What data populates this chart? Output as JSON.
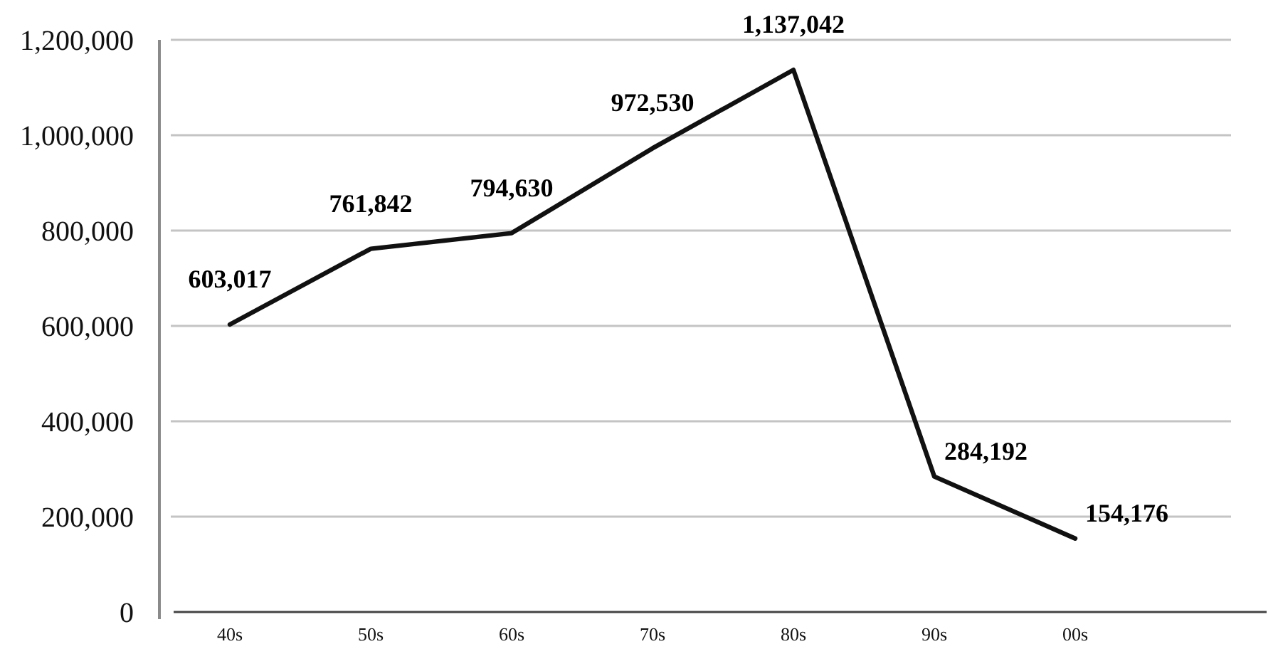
{
  "chart_data": {
    "type": "line",
    "categories": [
      "40s",
      "50s",
      "60s",
      "70s",
      "80s",
      "90s",
      "00s"
    ],
    "series": [
      {
        "color": "#111111",
        "values": [
          603017,
          761842,
          794630,
          972530,
          1137042,
          284192,
          154176
        ],
        "value_labels": [
          "603,017",
          "761,842",
          "794,630",
          "972,530",
          "1,137,042",
          "284,192",
          "154,176"
        ]
      }
    ],
    "ylim": [
      0,
      1200000
    ],
    "yticks": [
      {
        "value": 0,
        "label": "0"
      },
      {
        "value": 200000,
        "label": "200,000"
      },
      {
        "value": 400000,
        "label": "400,000"
      },
      {
        "value": 600000,
        "label": "600,000"
      },
      {
        "value": 800000,
        "label": "800,000"
      },
      {
        "value": 1000000,
        "label": "1,000,000"
      },
      {
        "value": 1200000,
        "label": "1,200,000"
      }
    ],
    "grid": "y",
    "marker": "none",
    "line_style": "solid"
  }
}
